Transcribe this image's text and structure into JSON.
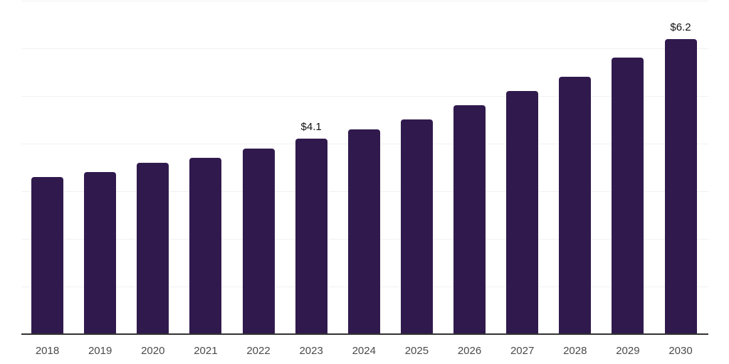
{
  "chart_data": {
    "type": "bar",
    "title": "",
    "xlabel": "",
    "ylabel": "",
    "categories": [
      "2018",
      "2019",
      "2020",
      "2021",
      "2022",
      "2023",
      "2024",
      "2025",
      "2026",
      "2027",
      "2028",
      "2029",
      "2030"
    ],
    "values": [
      3.3,
      3.4,
      3.6,
      3.7,
      3.9,
      4.1,
      4.3,
      4.5,
      4.8,
      5.1,
      5.4,
      5.8,
      6.2
    ],
    "value_labels": [
      null,
      null,
      null,
      null,
      null,
      "$4.1",
      null,
      null,
      null,
      null,
      null,
      null,
      "$6.2"
    ],
    "ylim": [
      0,
      7
    ],
    "gridline_values": [
      1,
      2,
      3,
      4,
      5,
      6,
      7
    ],
    "grid": "horizontal-only",
    "legend": "none",
    "colors": {
      "bar": "#301a4d",
      "axis_line": "#333333",
      "gridline": "#f1f1f1",
      "tick_label": "#4a4a4a",
      "value_label": "#111111",
      "background": "#ffffff"
    }
  }
}
